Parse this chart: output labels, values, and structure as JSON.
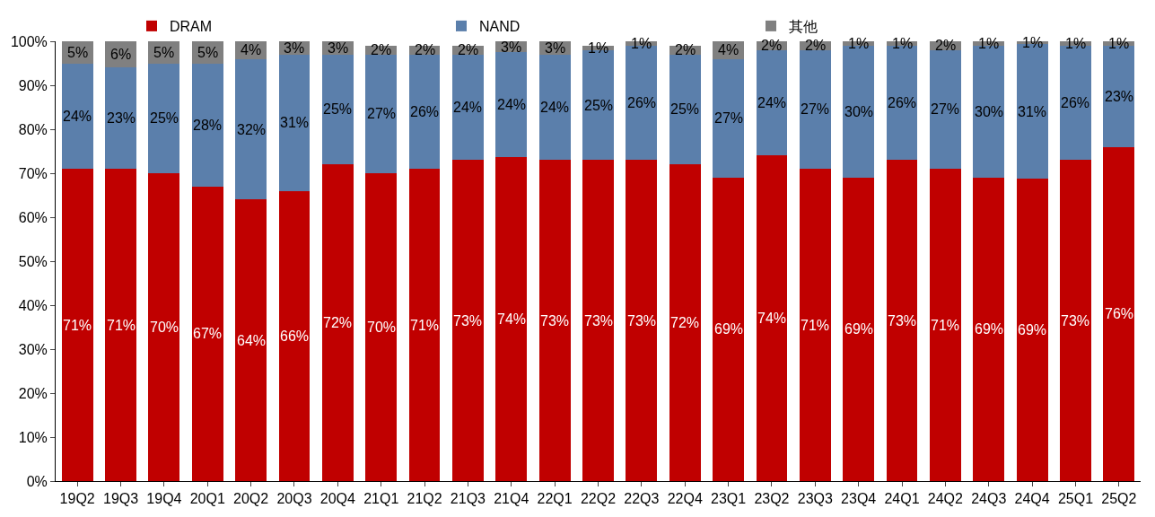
{
  "chart_data": {
    "type": "bar",
    "stacked": true,
    "legend": "top",
    "categories": [
      "19Q2",
      "19Q3",
      "19Q4",
      "20Q1",
      "20Q2",
      "20Q3",
      "20Q4",
      "21Q1",
      "21Q2",
      "21Q3",
      "21Q4",
      "22Q1",
      "22Q2",
      "22Q3",
      "22Q4",
      "23Q1",
      "23Q2",
      "23Q3",
      "23Q4",
      "24Q1",
      "24Q2",
      "24Q3",
      "24Q4",
      "25Q1",
      "25Q2"
    ],
    "series": [
      {
        "name": "DRAM",
        "color": "#c00000",
        "values": [
          71,
          71,
          70,
          67,
          64,
          66,
          72,
          70,
          71,
          73,
          73.6,
          73,
          73,
          73,
          72,
          69,
          74,
          71,
          69,
          73,
          71,
          69,
          68.7,
          73,
          76
        ],
        "value_labels": [
          "71%",
          "71%",
          "70%",
          "67%",
          "64%",
          "66%",
          "72%",
          "70%",
          "71%",
          "73%",
          "74%",
          "73%",
          "73%",
          "73%",
          "72%",
          "69%",
          "74%",
          "71%",
          "69%",
          "73%",
          "71%",
          "69%",
          "69%",
          "73%",
          "76%"
        ]
      },
      {
        "name": "NAND",
        "color": "#5b7fab",
        "values": [
          24,
          23,
          25,
          28,
          32,
          31,
          25,
          27,
          26,
          24,
          23.9,
          24,
          25,
          26,
          25,
          27,
          24,
          27,
          30,
          26,
          27,
          30,
          30.6,
          26,
          23
        ],
        "value_labels": [
          "24%",
          "23%",
          "25%",
          "28%",
          "32%",
          "31%",
          "25%",
          "27%",
          "26%",
          "24%",
          "24%",
          "24%",
          "25%",
          "26%",
          "25%",
          "27%",
          "24%",
          "27%",
          "30%",
          "26%",
          "27%",
          "30%",
          "31%",
          "26%",
          "23%"
        ]
      },
      {
        "name": "其他",
        "color": "#808080",
        "values": [
          5,
          6,
          5,
          5,
          4,
          3,
          3,
          2,
          2,
          2,
          2.5,
          3,
          1,
          1,
          2,
          4,
          2,
          2,
          1,
          1,
          2,
          1,
          0.7,
          1,
          1
        ],
        "value_labels": [
          "5%",
          "6%",
          "5%",
          "5%",
          "4%",
          "3%",
          "3%",
          "2%",
          "2%",
          "2%",
          "3%",
          "3%",
          "1%",
          "1%",
          "2%",
          "4%",
          "2%",
          "2%",
          "1%",
          "1%",
          "2%",
          "1%",
          "1%",
          "1%",
          "1%"
        ]
      }
    ],
    "ylim": [
      0,
      100
    ],
    "yticks": [
      {
        "value": 0,
        "label": "0%"
      },
      {
        "value": 10,
        "label": "10%"
      },
      {
        "value": 20,
        "label": "20%"
      },
      {
        "value": 30,
        "label": "30%"
      },
      {
        "value": 40,
        "label": "40%"
      },
      {
        "value": 50,
        "label": "50%"
      },
      {
        "value": 60,
        "label": "60%"
      },
      {
        "value": 70,
        "label": "70%"
      },
      {
        "value": 80,
        "label": "80%"
      },
      {
        "value": 90,
        "label": "90%"
      },
      {
        "value": 100,
        "label": "100%"
      }
    ]
  }
}
